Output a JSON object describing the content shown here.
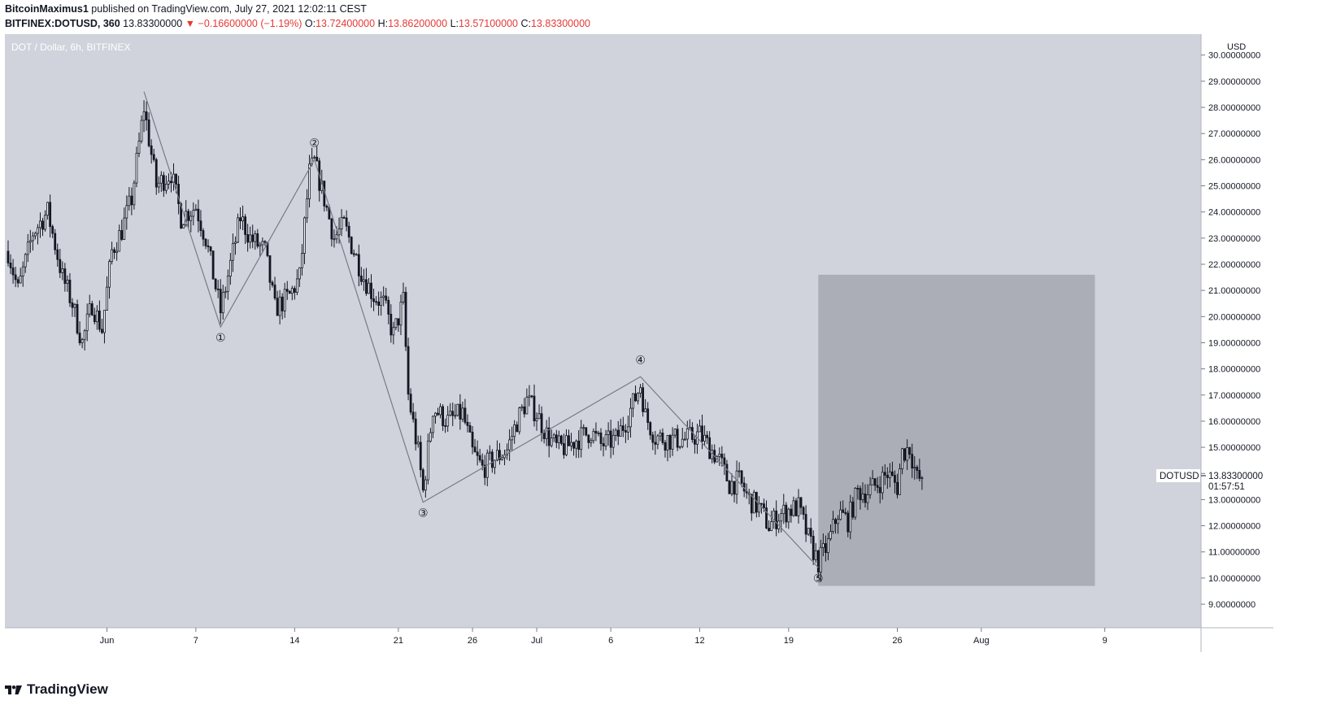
{
  "header": {
    "author": "BitcoinMaximus1",
    "published_text": "published on TradingView.com, July 27, 2021 12:02:11 CEST",
    "symbol": "BITFINEX:DOTUSD, 360",
    "last": "13.83300000",
    "change": "−0.16600000 (−1.19%)",
    "open_label": "O:",
    "open": "13.72400000",
    "high_label": "H:",
    "high": "13.86200000",
    "low_label": "L:",
    "low": "13.57100000",
    "close_label": "C:",
    "close": "13.83300000"
  },
  "footer": {
    "brand": "TradingView",
    "logo_icon": "tradingview-logo-icon"
  },
  "colors": {
    "plot_bg": "#d0d3dc",
    "candle": "#131722",
    "wave_line": "#787b86",
    "target_box": "#abaeb6",
    "down_color": "#e53935"
  },
  "chart_data": {
    "type": "candlestick",
    "title": "DOT / Dollar, 6h, BITFINEX",
    "currency": "USD",
    "ylim": [
      8.1,
      30.8
    ],
    "xlim": [
      0,
      240
    ],
    "y_ticks": [
      "30.00000000",
      "29.00000000",
      "28.00000000",
      "27.00000000",
      "26.00000000",
      "25.00000000",
      "24.00000000",
      "23.00000000",
      "22.00000000",
      "21.00000000",
      "20.00000000",
      "19.00000000",
      "18.00000000",
      "17.00000000",
      "16.00000000",
      "15.00000000",
      "14.00000000",
      "13.00000000",
      "12.00000000",
      "11.00000000",
      "10.00000000",
      "9.00000000"
    ],
    "x_ticks": [
      {
        "label": "Jun",
        "x": 20
      },
      {
        "label": "7",
        "x": 38
      },
      {
        "label": "14",
        "x": 58
      },
      {
        "label": "21",
        "x": 79
      },
      {
        "label": "26",
        "x": 94
      },
      {
        "label": "Jul",
        "x": 107
      },
      {
        "label": "6",
        "x": 122
      },
      {
        "label": "12",
        "x": 140
      },
      {
        "label": "19",
        "x": 158
      },
      {
        "label": "26",
        "x": 180
      },
      {
        "label": "Aug",
        "x": 197
      },
      {
        "label": "9",
        "x": 222
      }
    ],
    "price_label": {
      "symbol": "DOTUSD",
      "value": "13.83300000",
      "countdown": "01:57:51",
      "price": 13.833
    },
    "wave_points": [
      {
        "label": "",
        "x": 27.5,
        "price": 28.6
      },
      {
        "label": "①",
        "x": 43,
        "price": 19.6
      },
      {
        "label": "②",
        "x": 62,
        "price": 26.0
      },
      {
        "label": "③",
        "x": 84,
        "price": 12.9
      },
      {
        "label": "④",
        "x": 128,
        "price": 17.7
      },
      {
        "label": "⑤",
        "x": 164,
        "price": 10.4
      }
    ],
    "target_zone": {
      "x_start": 164,
      "x_end": 220,
      "price_low": 9.7,
      "price_high": 21.6
    },
    "anchors": [
      {
        "x": 0,
        "price": 22.5
      },
      {
        "x": 2,
        "price": 21.0
      },
      {
        "x": 5,
        "price": 23.2
      },
      {
        "x": 8,
        "price": 24.0
      },
      {
        "x": 11,
        "price": 21.5
      },
      {
        "x": 13,
        "price": 20.5
      },
      {
        "x": 15,
        "price": 19.0
      },
      {
        "x": 17,
        "price": 20.5
      },
      {
        "x": 19,
        "price": 19.5
      },
      {
        "x": 21,
        "price": 22.5
      },
      {
        "x": 23,
        "price": 23.3
      },
      {
        "x": 25,
        "price": 24.5
      },
      {
        "x": 27.5,
        "price": 28.0
      },
      {
        "x": 30,
        "price": 25.0
      },
      {
        "x": 33,
        "price": 25.5
      },
      {
        "x": 35,
        "price": 23.8
      },
      {
        "x": 38,
        "price": 24.2
      },
      {
        "x": 40,
        "price": 23.0
      },
      {
        "x": 43,
        "price": 20.2
      },
      {
        "x": 45,
        "price": 22.0
      },
      {
        "x": 47,
        "price": 23.8
      },
      {
        "x": 49,
        "price": 23.0
      },
      {
        "x": 52,
        "price": 22.5
      },
      {
        "x": 54,
        "price": 20.3
      },
      {
        "x": 57,
        "price": 20.8
      },
      {
        "x": 59,
        "price": 21.5
      },
      {
        "x": 61,
        "price": 25.5
      },
      {
        "x": 62,
        "price": 25.9
      },
      {
        "x": 64,
        "price": 24.5
      },
      {
        "x": 66,
        "price": 23.0
      },
      {
        "x": 68,
        "price": 23.5
      },
      {
        "x": 70,
        "price": 22.5
      },
      {
        "x": 72,
        "price": 21.5
      },
      {
        "x": 74,
        "price": 20.8
      },
      {
        "x": 76,
        "price": 20.5
      },
      {
        "x": 78,
        "price": 19.3
      },
      {
        "x": 80,
        "price": 20.6
      },
      {
        "x": 81,
        "price": 17.0
      },
      {
        "x": 83,
        "price": 14.8
      },
      {
        "x": 84,
        "price": 13.3
      },
      {
        "x": 86,
        "price": 16.5
      },
      {
        "x": 89,
        "price": 16.0
      },
      {
        "x": 92,
        "price": 16.3
      },
      {
        "x": 94,
        "price": 14.8
      },
      {
        "x": 96,
        "price": 14.2
      },
      {
        "x": 98,
        "price": 14.5
      },
      {
        "x": 101,
        "price": 14.9
      },
      {
        "x": 103,
        "price": 16.0
      },
      {
        "x": 105,
        "price": 16.8
      },
      {
        "x": 107,
        "price": 16.3
      },
      {
        "x": 109,
        "price": 15.5
      },
      {
        "x": 111,
        "price": 15.0
      },
      {
        "x": 113,
        "price": 15.0
      },
      {
        "x": 115,
        "price": 15.3
      },
      {
        "x": 118,
        "price": 15.6
      },
      {
        "x": 120,
        "price": 15.1
      },
      {
        "x": 123,
        "price": 15.3
      },
      {
        "x": 125,
        "price": 16.0
      },
      {
        "x": 127,
        "price": 16.9
      },
      {
        "x": 128,
        "price": 17.4
      },
      {
        "x": 129,
        "price": 16.2
      },
      {
        "x": 131,
        "price": 15.4
      },
      {
        "x": 134,
        "price": 15.3
      },
      {
        "x": 137,
        "price": 15.3
      },
      {
        "x": 140,
        "price": 15.5
      },
      {
        "x": 142,
        "price": 15.0
      },
      {
        "x": 144,
        "price": 14.5
      },
      {
        "x": 146,
        "price": 13.6
      },
      {
        "x": 148,
        "price": 13.7
      },
      {
        "x": 150,
        "price": 13.0
      },
      {
        "x": 152,
        "price": 12.7
      },
      {
        "x": 154,
        "price": 12.0
      },
      {
        "x": 156,
        "price": 12.4
      },
      {
        "x": 158,
        "price": 12.6
      },
      {
        "x": 160,
        "price": 12.7
      },
      {
        "x": 162,
        "price": 11.5
      },
      {
        "x": 164,
        "price": 10.6
      },
      {
        "x": 166,
        "price": 11.3
      },
      {
        "x": 168,
        "price": 12.5
      },
      {
        "x": 170,
        "price": 12.2
      },
      {
        "x": 172,
        "price": 13.3
      },
      {
        "x": 174,
        "price": 13.3
      },
      {
        "x": 176,
        "price": 13.6
      },
      {
        "x": 178,
        "price": 14.0
      },
      {
        "x": 180,
        "price": 13.5
      },
      {
        "x": 181,
        "price": 14.8
      },
      {
        "x": 182.5,
        "price": 15.0
      },
      {
        "x": 184,
        "price": 13.8
      },
      {
        "x": 185,
        "price": 13.8
      }
    ]
  }
}
